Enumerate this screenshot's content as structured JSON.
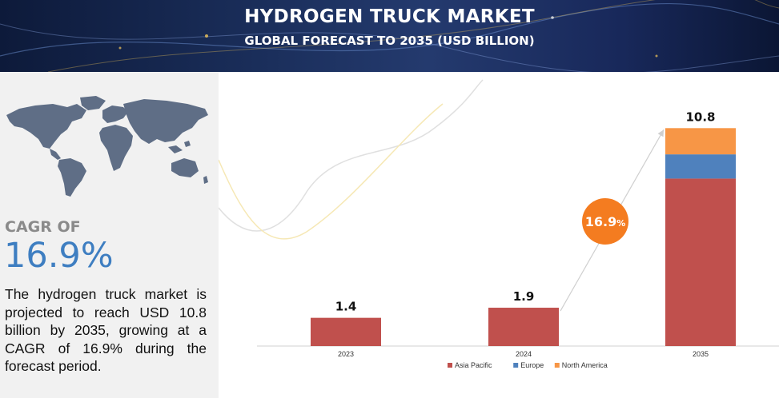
{
  "header": {
    "title": "HYDROGEN TRUCK MARKET",
    "subtitle": "GLOBAL FORECAST TO 2035 (USD BILLION)"
  },
  "sidebar": {
    "map_icon": "world-map-icon",
    "cagr_label": "CAGR OF",
    "cagr_value": "16.9%",
    "description": "The hydrogen truck market is projected to reach USD 10.8 billion by 2035, growing at a CAGR of 16.9% during the forecast period."
  },
  "chart_data": {
    "type": "bar",
    "stacked": true,
    "categories": [
      "2023",
      "2024",
      "2035"
    ],
    "totals": [
      1.4,
      1.9,
      10.8
    ],
    "total_labels": [
      "1.4",
      "1.9",
      "10.8"
    ],
    "series": [
      {
        "name": "Asia Pacific",
        "color": "#c0504d",
        "values": [
          1.4,
          1.9,
          8.3
        ]
      },
      {
        "name": "Europe",
        "color": "#4f81bd",
        "values": [
          0.0,
          0.0,
          1.2
        ]
      },
      {
        "name": "North America",
        "color": "#f79646",
        "values": [
          0.0,
          0.0,
          1.3
        ]
      }
    ],
    "ylim": [
      0,
      12
    ],
    "grid": false,
    "legend": "bottom",
    "cagr_badge": {
      "value": "16.9",
      "suffix": "%",
      "color": "#f47c20"
    }
  }
}
